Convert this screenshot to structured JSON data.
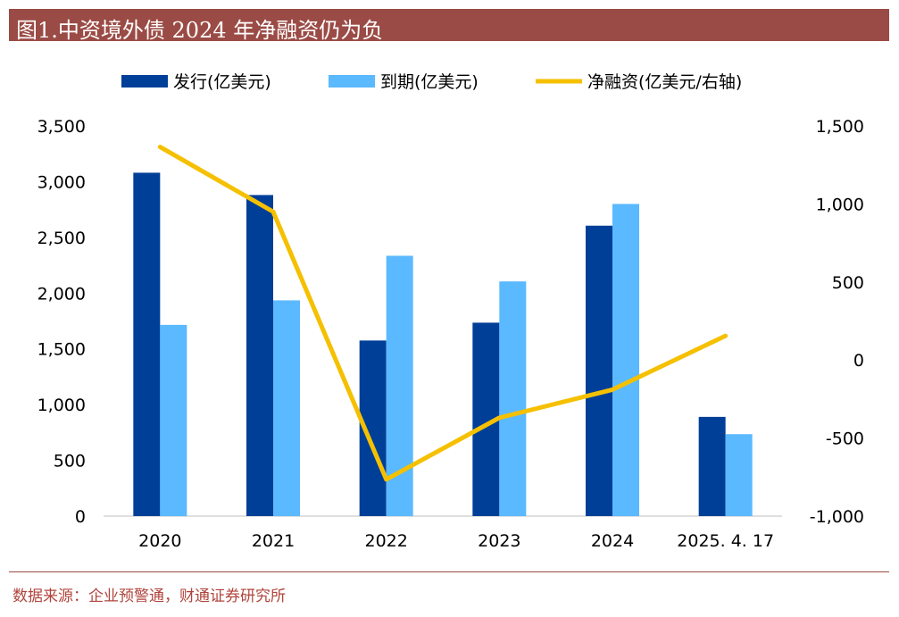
{
  "header": {
    "title": "图1.中资境外债 2024 年净融资仍为负"
  },
  "footer": {
    "source": "数据来源：企业预警通，财通证券研究所"
  },
  "colors": {
    "issuance": "#003f98",
    "maturity": "#5ab9ff",
    "net": "#f5c000",
    "title_bg": "#9b4b45"
  },
  "chart_data": {
    "type": "bar",
    "categories": [
      "2020",
      "2021",
      "2022",
      "2023",
      "2024",
      "2025. 4. 17"
    ],
    "series": [
      {
        "name": "发行(亿美元)",
        "kind": "bar",
        "axis": "left",
        "values": [
          3080,
          2880,
          1575,
          1735,
          2605,
          890
        ]
      },
      {
        "name": "到期(亿美元)",
        "kind": "bar",
        "axis": "left",
        "values": [
          1715,
          1935,
          2335,
          2105,
          2800,
          735
        ]
      },
      {
        "name": "净融资(亿美元/右轴)",
        "kind": "line",
        "axis": "right",
        "values": [
          1365,
          950,
          -765,
          -370,
          -190,
          155
        ]
      }
    ],
    "left_axis": {
      "ylim": [
        0,
        3500
      ],
      "ticks": [
        "3,500",
        "3,000",
        "2,500",
        "2,000",
        "1,500",
        "1,000",
        "500",
        "0"
      ]
    },
    "right_axis": {
      "ylim": [
        -1000,
        1500
      ],
      "ticks": [
        "1,500",
        "1,000",
        "500",
        "0",
        "-500",
        "-1,000"
      ]
    },
    "legend_position": "top",
    "grid": false
  }
}
